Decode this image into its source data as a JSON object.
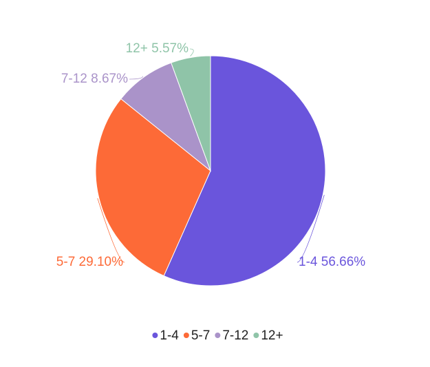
{
  "chart_data": {
    "type": "pie",
    "categories": [
      "1-4",
      "5-7",
      "7-12",
      "12+"
    ],
    "values": [
      56.66,
      29.1,
      8.67,
      5.57
    ],
    "value_labels": [
      "56.66%",
      "29.10%",
      "8.67%",
      "5.57%"
    ],
    "colors": [
      "#6a55dc",
      "#fd6a37",
      "#aa93c9",
      "#8fc4a8"
    ],
    "legend": "bottom"
  }
}
